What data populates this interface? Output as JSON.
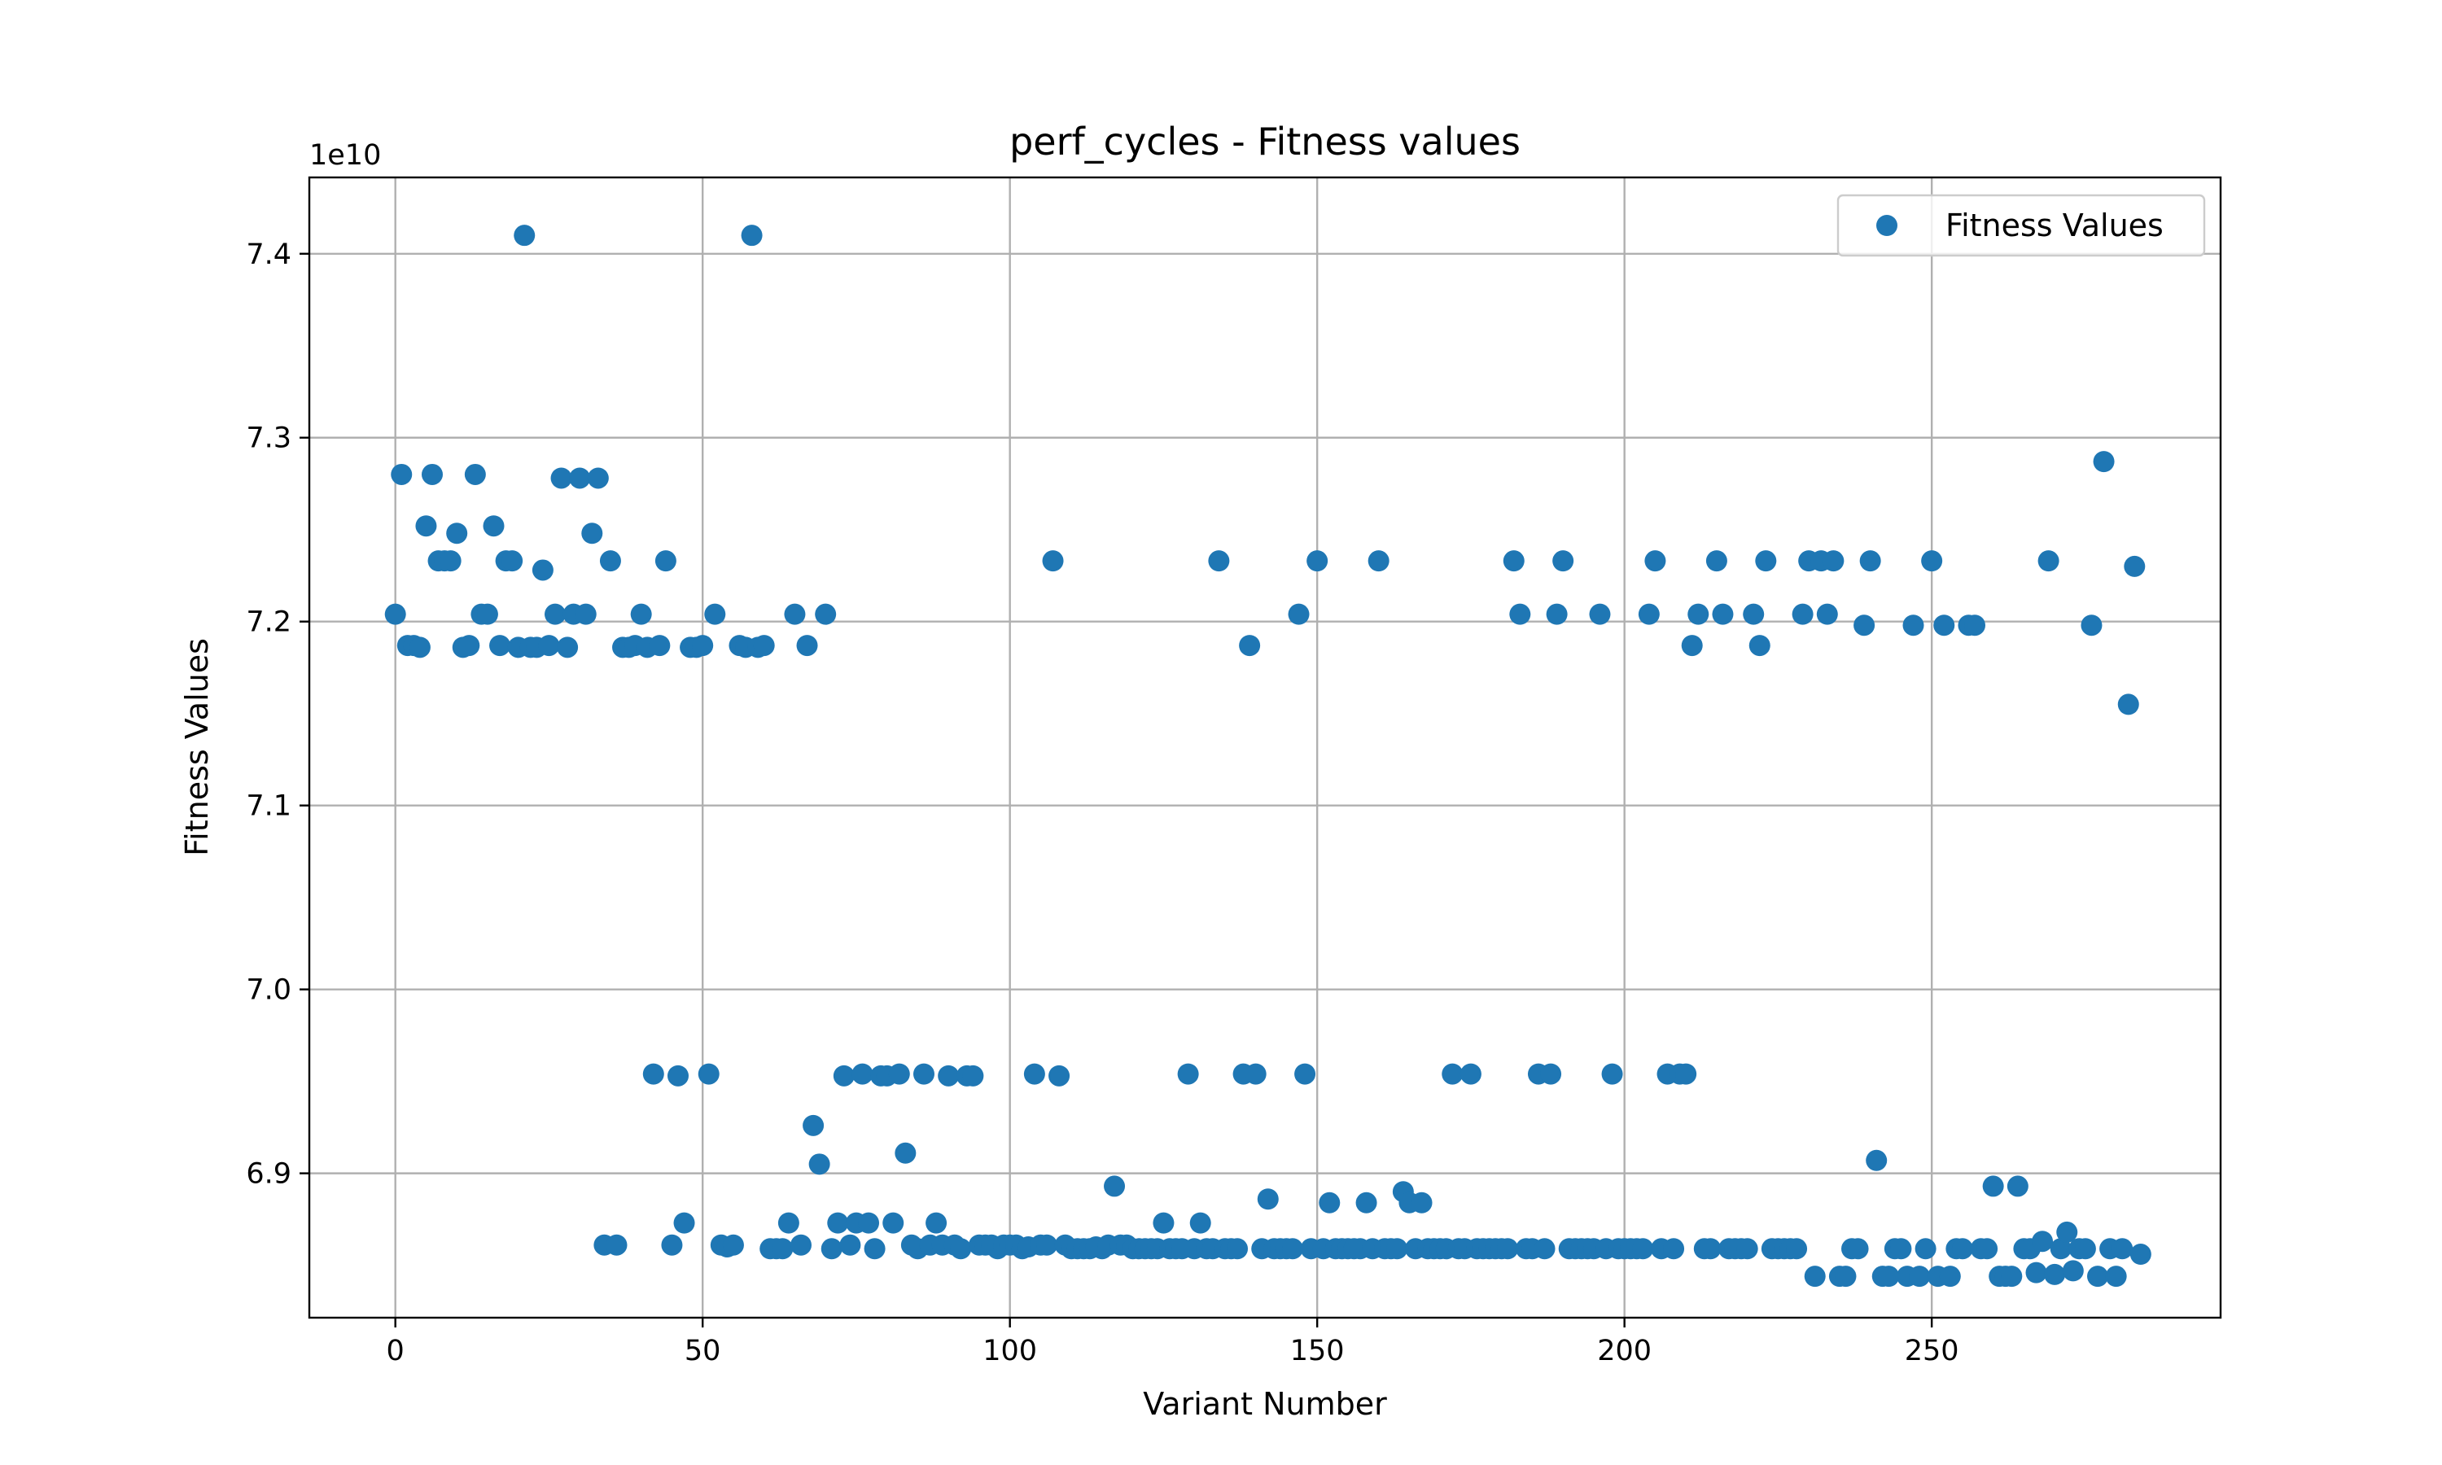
{
  "chart_data": {
    "type": "scatter",
    "title": "perf_cycles - Fitness values",
    "xlabel": "Variant Number",
    "ylabel": "Fitness Values",
    "y_offset_label": "1e10",
    "y_scale_factor": 10000000000.0,
    "xlim": [
      -14,
      297
    ],
    "ylim": [
      6.8215,
      7.4415
    ],
    "x_ticks": [
      0,
      50,
      100,
      150,
      200,
      250
    ],
    "y_ticks": [
      6.9,
      7.0,
      7.1,
      7.2,
      7.3,
      7.4
    ],
    "x_tick_labels": [
      "0",
      "50",
      "100",
      "150",
      "200",
      "250"
    ],
    "y_tick_labels": [
      "6.9",
      "7.0",
      "7.1",
      "7.2",
      "7.3",
      "7.4"
    ],
    "grid": true,
    "legend_position": "top-right",
    "series": [
      {
        "name": "Fitness Values",
        "color": "#1f77b4",
        "points": [
          [
            0,
            7.204
          ],
          [
            1,
            7.28
          ],
          [
            2,
            7.187
          ],
          [
            3,
            7.187
          ],
          [
            4,
            7.186
          ],
          [
            5,
            7.252
          ],
          [
            6,
            7.28
          ],
          [
            7,
            7.233
          ],
          [
            8,
            7.233
          ],
          [
            9,
            7.233
          ],
          [
            10,
            7.248
          ],
          [
            11,
            7.186
          ],
          [
            12,
            7.187
          ],
          [
            13,
            7.28
          ],
          [
            14,
            7.204
          ],
          [
            15,
            7.204
          ],
          [
            16,
            7.252
          ],
          [
            17,
            7.187
          ],
          [
            18,
            7.233
          ],
          [
            19,
            7.233
          ],
          [
            20,
            7.186
          ],
          [
            21,
            7.41
          ],
          [
            22,
            7.186
          ],
          [
            23,
            7.186
          ],
          [
            24,
            7.228
          ],
          [
            25,
            7.187
          ],
          [
            26,
            7.204
          ],
          [
            27,
            7.278
          ],
          [
            28,
            7.186
          ],
          [
            29,
            7.204
          ],
          [
            30,
            7.278
          ],
          [
            31,
            7.204
          ],
          [
            32,
            7.248
          ],
          [
            33,
            7.278
          ],
          [
            34,
            6.861
          ],
          [
            35,
            7.233
          ],
          [
            36,
            6.861
          ],
          [
            37,
            7.186
          ],
          [
            38,
            7.186
          ],
          [
            39,
            7.187
          ],
          [
            40,
            7.204
          ],
          [
            41,
            7.186
          ],
          [
            42,
            6.954
          ],
          [
            43,
            7.187
          ],
          [
            44,
            7.233
          ],
          [
            45,
            6.861
          ],
          [
            46,
            6.953
          ],
          [
            47,
            6.873
          ],
          [
            48,
            7.186
          ],
          [
            49,
            7.186
          ],
          [
            50,
            7.187
          ],
          [
            51,
            6.954
          ],
          [
            52,
            7.204
          ],
          [
            53,
            6.861
          ],
          [
            54,
            6.86
          ],
          [
            55,
            6.861
          ],
          [
            56,
            7.187
          ],
          [
            57,
            7.186
          ],
          [
            58,
            7.41
          ],
          [
            59,
            7.186
          ],
          [
            60,
            7.187
          ],
          [
            61,
            6.859
          ],
          [
            62,
            6.859
          ],
          [
            63,
            6.859
          ],
          [
            64,
            6.873
          ],
          [
            65,
            7.204
          ],
          [
            66,
            6.861
          ],
          [
            67,
            7.187
          ],
          [
            68,
            6.926
          ],
          [
            69,
            6.905
          ],
          [
            70,
            7.204
          ],
          [
            71,
            6.859
          ],
          [
            72,
            6.873
          ],
          [
            73,
            6.953
          ],
          [
            74,
            6.861
          ],
          [
            75,
            6.873
          ],
          [
            76,
            6.954
          ],
          [
            77,
            6.873
          ],
          [
            78,
            6.859
          ],
          [
            79,
            6.953
          ],
          [
            80,
            6.953
          ],
          [
            81,
            6.873
          ],
          [
            82,
            6.954
          ],
          [
            83,
            6.911
          ],
          [
            84,
            6.861
          ],
          [
            85,
            6.859
          ],
          [
            86,
            6.954
          ],
          [
            87,
            6.861
          ],
          [
            88,
            6.873
          ],
          [
            89,
            6.861
          ],
          [
            90,
            6.953
          ],
          [
            91,
            6.861
          ],
          [
            92,
            6.859
          ],
          [
            93,
            6.953
          ],
          [
            94,
            6.953
          ],
          [
            95,
            6.861
          ],
          [
            96,
            6.861
          ],
          [
            97,
            6.861
          ],
          [
            98,
            6.859
          ],
          [
            99,
            6.861
          ],
          [
            100,
            6.861
          ],
          [
            101,
            6.861
          ],
          [
            102,
            6.859
          ],
          [
            103,
            6.86
          ],
          [
            104,
            6.954
          ],
          [
            105,
            6.861
          ],
          [
            106,
            6.861
          ],
          [
            107,
            7.233
          ],
          [
            108,
            6.953
          ],
          [
            109,
            6.861
          ],
          [
            110,
            6.859
          ],
          [
            111,
            6.859
          ],
          [
            112,
            6.859
          ],
          [
            113,
            6.859
          ],
          [
            114,
            6.86
          ],
          [
            115,
            6.859
          ],
          [
            116,
            6.861
          ],
          [
            117,
            6.893
          ],
          [
            118,
            6.861
          ],
          [
            119,
            6.861
          ],
          [
            120,
            6.859
          ],
          [
            121,
            6.859
          ],
          [
            122,
            6.859
          ],
          [
            123,
            6.859
          ],
          [
            124,
            6.859
          ],
          [
            125,
            6.873
          ],
          [
            126,
            6.859
          ],
          [
            127,
            6.859
          ],
          [
            128,
            6.859
          ],
          [
            129,
            6.954
          ],
          [
            130,
            6.859
          ],
          [
            131,
            6.873
          ],
          [
            132,
            6.859
          ],
          [
            133,
            6.859
          ],
          [
            134,
            7.233
          ],
          [
            135,
            6.859
          ],
          [
            136,
            6.859
          ],
          [
            137,
            6.859
          ],
          [
            138,
            6.954
          ],
          [
            139,
            7.187
          ],
          [
            140,
            6.954
          ],
          [
            141,
            6.859
          ],
          [
            142,
            6.886
          ],
          [
            143,
            6.859
          ],
          [
            144,
            6.859
          ],
          [
            145,
            6.859
          ],
          [
            146,
            6.859
          ],
          [
            147,
            7.204
          ],
          [
            148,
            6.954
          ],
          [
            149,
            6.859
          ],
          [
            150,
            7.233
          ],
          [
            151,
            6.859
          ],
          [
            152,
            6.884
          ],
          [
            153,
            6.859
          ],
          [
            154,
            6.859
          ],
          [
            155,
            6.859
          ],
          [
            156,
            6.859
          ],
          [
            157,
            6.859
          ],
          [
            158,
            6.884
          ],
          [
            159,
            6.859
          ],
          [
            160,
            7.233
          ],
          [
            161,
            6.859
          ],
          [
            162,
            6.859
          ],
          [
            163,
            6.859
          ],
          [
            164,
            6.89
          ],
          [
            165,
            6.884
          ],
          [
            166,
            6.859
          ],
          [
            167,
            6.884
          ],
          [
            168,
            6.859
          ],
          [
            169,
            6.859
          ],
          [
            170,
            6.859
          ],
          [
            171,
            6.859
          ],
          [
            172,
            6.954
          ],
          [
            173,
            6.859
          ],
          [
            174,
            6.859
          ],
          [
            175,
            6.954
          ],
          [
            176,
            6.859
          ],
          [
            177,
            6.859
          ],
          [
            178,
            6.859
          ],
          [
            179,
            6.859
          ],
          [
            180,
            6.859
          ],
          [
            181,
            6.859
          ],
          [
            182,
            7.233
          ],
          [
            183,
            7.204
          ],
          [
            184,
            6.859
          ],
          [
            185,
            6.859
          ],
          [
            186,
            6.954
          ],
          [
            187,
            6.859
          ],
          [
            188,
            6.954
          ],
          [
            189,
            7.204
          ],
          [
            190,
            7.233
          ],
          [
            191,
            6.859
          ],
          [
            192,
            6.859
          ],
          [
            193,
            6.859
          ],
          [
            194,
            6.859
          ],
          [
            195,
            6.859
          ],
          [
            196,
            7.204
          ],
          [
            197,
            6.859
          ],
          [
            198,
            6.954
          ],
          [
            199,
            6.859
          ],
          [
            200,
            6.859
          ],
          [
            201,
            6.859
          ],
          [
            202,
            6.859
          ],
          [
            203,
            6.859
          ],
          [
            204,
            7.204
          ],
          [
            205,
            7.233
          ],
          [
            206,
            6.859
          ],
          [
            207,
            6.954
          ],
          [
            208,
            6.859
          ],
          [
            209,
            6.954
          ],
          [
            210,
            6.954
          ],
          [
            211,
            7.187
          ],
          [
            212,
            7.204
          ],
          [
            213,
            6.859
          ],
          [
            214,
            6.859
          ],
          [
            215,
            7.233
          ],
          [
            216,
            7.204
          ],
          [
            217,
            6.859
          ],
          [
            218,
            6.859
          ],
          [
            219,
            6.859
          ],
          [
            220,
            6.859
          ],
          [
            221,
            7.204
          ],
          [
            222,
            7.187
          ],
          [
            223,
            7.233
          ],
          [
            224,
            6.859
          ],
          [
            225,
            6.859
          ],
          [
            226,
            6.859
          ],
          [
            227,
            6.859
          ],
          [
            228,
            6.859
          ],
          [
            229,
            7.204
          ],
          [
            230,
            7.233
          ],
          [
            231,
            6.844
          ],
          [
            232,
            7.233
          ],
          [
            233,
            7.204
          ],
          [
            234,
            7.233
          ],
          [
            235,
            6.844
          ],
          [
            236,
            6.844
          ],
          [
            237,
            6.859
          ],
          [
            238,
            6.859
          ],
          [
            239,
            7.198
          ],
          [
            240,
            7.233
          ],
          [
            241,
            6.907
          ],
          [
            242,
            6.844
          ],
          [
            243,
            6.844
          ],
          [
            244,
            6.859
          ],
          [
            245,
            6.859
          ],
          [
            246,
            6.844
          ],
          [
            247,
            7.198
          ],
          [
            248,
            6.844
          ],
          [
            249,
            6.859
          ],
          [
            250,
            7.233
          ],
          [
            251,
            6.844
          ],
          [
            252,
            7.198
          ],
          [
            253,
            6.844
          ],
          [
            254,
            6.859
          ],
          [
            255,
            6.859
          ],
          [
            256,
            7.198
          ],
          [
            257,
            7.198
          ],
          [
            258,
            6.859
          ],
          [
            259,
            6.859
          ],
          [
            260,
            6.893
          ],
          [
            261,
            6.844
          ],
          [
            262,
            6.844
          ],
          [
            263,
            6.844
          ],
          [
            264,
            6.893
          ],
          [
            265,
            6.859
          ],
          [
            266,
            6.859
          ],
          [
            267,
            6.846
          ],
          [
            268,
            6.863
          ],
          [
            269,
            7.233
          ],
          [
            270,
            6.845
          ],
          [
            271,
            6.859
          ],
          [
            272,
            6.868
          ],
          [
            273,
            6.847
          ],
          [
            274,
            6.859
          ],
          [
            275,
            6.859
          ],
          [
            276,
            7.198
          ],
          [
            277,
            6.844
          ],
          [
            278,
            7.287
          ],
          [
            279,
            6.859
          ],
          [
            280,
            6.844
          ],
          [
            281,
            6.859
          ],
          [
            282,
            7.155
          ],
          [
            283,
            7.23
          ],
          [
            284,
            6.856
          ]
        ]
      }
    ]
  }
}
